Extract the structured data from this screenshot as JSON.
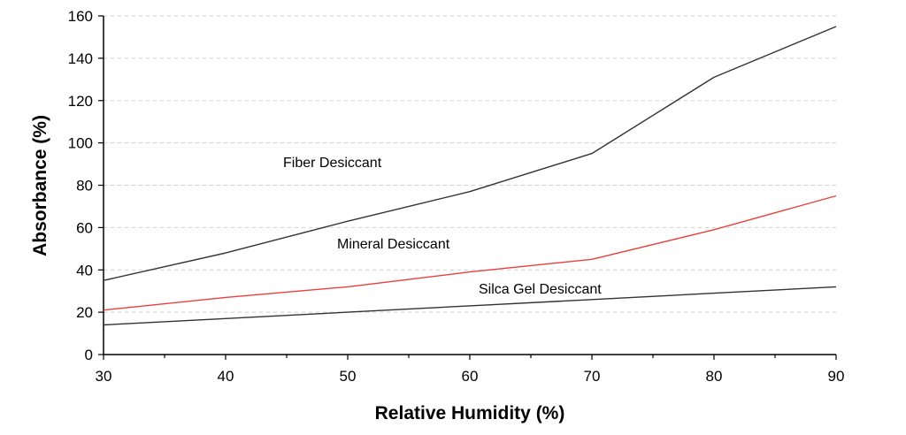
{
  "chart_data": {
    "type": "line",
    "xlabel": "Relative Humidity (%)",
    "ylabel": "Absorbance (%)",
    "xlim": [
      30,
      90
    ],
    "ylim": [
      0,
      160
    ],
    "x_ticks": [
      30,
      40,
      50,
      60,
      70,
      80,
      90
    ],
    "y_ticks": [
      0,
      20,
      40,
      60,
      80,
      100,
      120,
      140,
      160
    ],
    "grid": "horizontal dashed",
    "x": [
      30,
      40,
      50,
      60,
      70,
      80,
      90
    ],
    "series": [
      {
        "name": "Fiber Desiccant",
        "values": [
          35,
          48,
          63,
          77,
          95,
          131,
          155
        ],
        "color": "#333333"
      },
      {
        "name": "Mineral Desiccant",
        "values": [
          21,
          27,
          32,
          39,
          45,
          59,
          75
        ],
        "color": "#e8413c"
      },
      {
        "name": "Silca Gel Desiccant",
        "values": [
          14,
          17,
          20,
          23,
          26,
          29,
          32
        ],
        "color": "#333333"
      }
    ]
  }
}
